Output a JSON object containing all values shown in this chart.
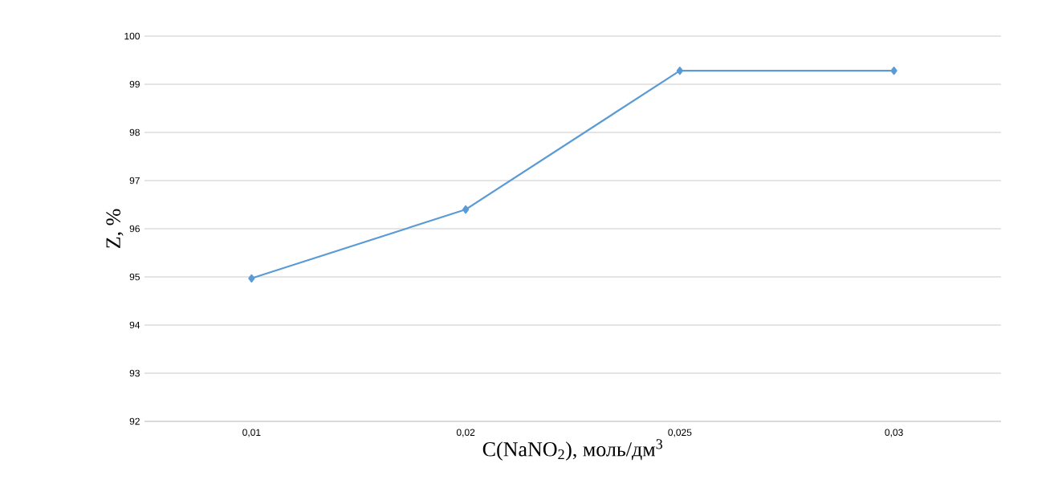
{
  "chart_data": {
    "type": "line",
    "xlabel": "C(NaNO$_{2}$), моль/дм$^{3}$",
    "ylabel": "Z, %",
    "categories": [
      "0,01",
      "0,02",
      "0,025",
      "0,03"
    ],
    "series": [
      {
        "color": "#5b9bd5",
        "values": [
          94.97,
          96.4,
          99.28,
          99.28
        ]
      }
    ],
    "ylim": [
      92,
      100
    ],
    "yticks": [
      92,
      93,
      94,
      95,
      96,
      97,
      98,
      99,
      100
    ],
    "grid": "y",
    "marker": "diamond",
    "line_style": "solid"
  }
}
